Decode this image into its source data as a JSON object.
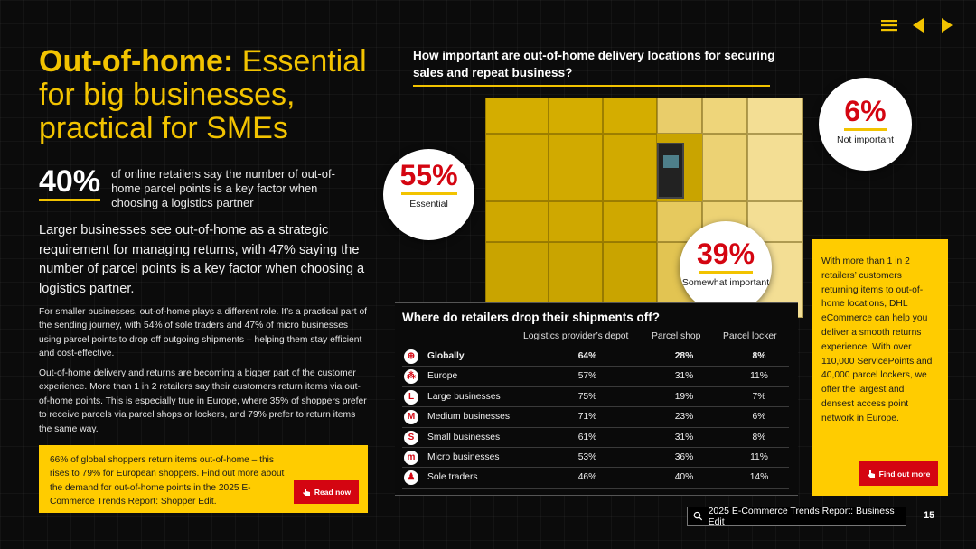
{
  "headline": {
    "bold": "Out-of-home:",
    "rest": " Essential for big businesses, practical for SMEs"
  },
  "stat": {
    "value": "40%",
    "text": "of online retailers say the number of out-of-home parcel points is a key factor when choosing a logistics partner"
  },
  "lead": "Larger businesses see out-of-home as a strategic requirement for managing returns, with 47% saying the number of parcel points is a key factor when choosing a logistics partner.",
  "paragraphs": [
    "For smaller businesses, out-of-home plays a different role. It’s a practical part of the sending journey, with 54% of sole traders and 47% of micro businesses using parcel points to drop off outgoing shipments – helping them stay efficient and cost-effective.",
    "Out-of-home delivery and returns are becoming a bigger part of the customer experience. More than 1 in 2 retailers say their customers return items via out-of-home points. This is especially true in Europe, where 35% of shoppers prefer to receive parcels via parcel shops or lockers, and 79% prefer to return items the same way."
  ],
  "promo": {
    "text": "66% of global shoppers return items out-of-home – this rises to 79% for European shoppers. Find out more about the demand for out-of-home points in the 2025 E-Commerce Trends Report: Shopper Edit.",
    "button": "Read now"
  },
  "question": "How important are out-of-home delivery locations for securing sales and repeat business?",
  "circles": {
    "essential": {
      "value": "55%",
      "label": "Essential"
    },
    "not_important": {
      "value": "6%",
      "label": "Not important"
    },
    "somewhat": {
      "value": "39%",
      "label": "Somewhat important"
    }
  },
  "table": {
    "title": "Where do retailers drop their shipments off?",
    "headers": [
      "Logistics provider’s depot",
      "Parcel shop",
      "Parcel locker"
    ],
    "rows": [
      {
        "icon": "globe-icon",
        "glyph": "⊕",
        "label": "Globally",
        "values": [
          "64%",
          "28%",
          "8%"
        ]
      },
      {
        "icon": "europe-stars-icon",
        "glyph": "⁂",
        "label": "Europe",
        "values": [
          "57%",
          "31%",
          "11%"
        ]
      },
      {
        "icon": "letter-l-icon",
        "glyph": "L",
        "label": "Large businesses",
        "values": [
          "75%",
          "19%",
          "7%"
        ]
      },
      {
        "icon": "letter-m-icon",
        "glyph": "M",
        "label": "Medium businesses",
        "values": [
          "71%",
          "23%",
          "6%"
        ]
      },
      {
        "icon": "letter-s-icon",
        "glyph": "S",
        "label": "Small businesses",
        "values": [
          "61%",
          "31%",
          "8%"
        ]
      },
      {
        "icon": "letter-m-small-icon",
        "glyph": "m",
        "label": "Micro businesses",
        "values": [
          "53%",
          "36%",
          "11%"
        ]
      },
      {
        "icon": "person-icon",
        "glyph": "♟",
        "label": "Sole traders",
        "values": [
          "46%",
          "40%",
          "14%"
        ]
      }
    ]
  },
  "side": {
    "text": "With more than 1 in 2 retailers’ customers returning items to out-of-home locations, DHL eCommerce can help you deliver a smooth returns experience. With over 110,000 ServicePoints and 40,000 parcel lockers, we offer the largest and densest access point network in Europe.",
    "button": "Find out more"
  },
  "footer": {
    "link": "2025 E-Commerce Trends Report: Business Edit",
    "page": "15"
  },
  "colors": {
    "yellow": "#ffcc00",
    "red": "#d40511",
    "background": "#0b0b0b"
  }
}
